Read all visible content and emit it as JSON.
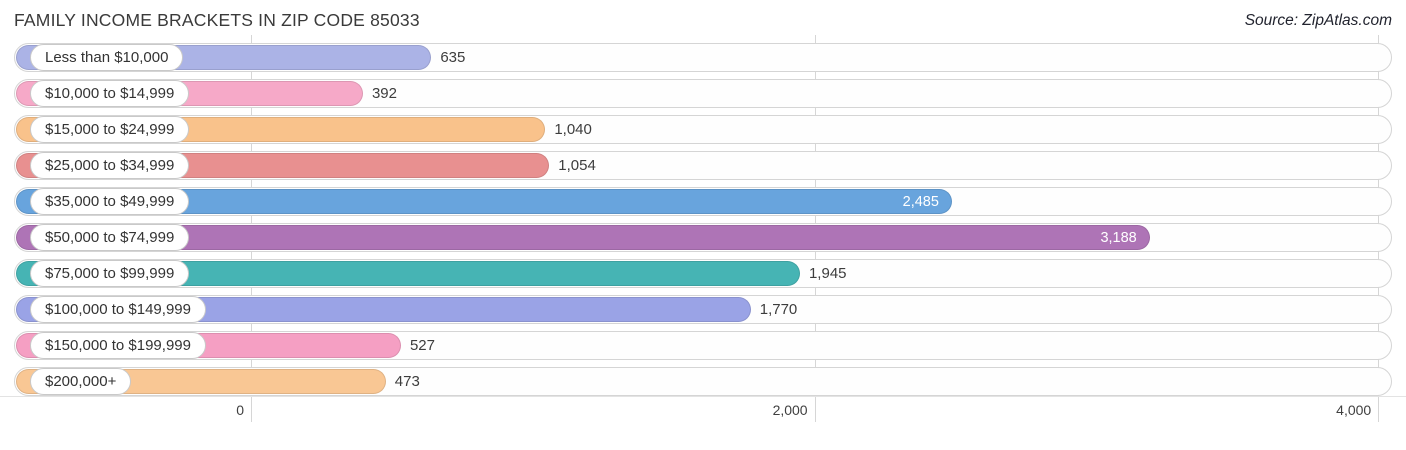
{
  "header": {
    "title": "FAMILY INCOME BRACKETS IN ZIP CODE 85033",
    "source": "Source: ZipAtlas.com"
  },
  "chart_data": {
    "type": "bar",
    "orientation": "horizontal",
    "title": "FAMILY INCOME BRACKETS IN ZIP CODE 85033",
    "source": "Source: ZipAtlas.com",
    "categories": [
      "Less than $10,000",
      "$10,000 to $14,999",
      "$15,000 to $24,999",
      "$25,000 to $34,999",
      "$35,000 to $49,999",
      "$50,000 to $74,999",
      "$75,000 to $99,999",
      "$100,000 to $149,999",
      "$150,000 to $199,999",
      "$200,000+"
    ],
    "values": [
      635,
      392,
      1040,
      1054,
      2485,
      3188,
      1945,
      1770,
      527,
      473
    ],
    "value_labels": [
      "635",
      "392",
      "1,040",
      "1,054",
      "2,485",
      "3,188",
      "1,945",
      "1,770",
      "527",
      "473"
    ],
    "value_label_inside": [
      false,
      false,
      false,
      false,
      true,
      true,
      false,
      false,
      false,
      false
    ],
    "bar_colors": [
      "#abb3e6",
      "#f6a9c8",
      "#f9c28b",
      "#e89090",
      "#68a4dd",
      "#ae74b6",
      "#46b4b4",
      "#9aa3e6",
      "#f59fc3",
      "#f9c794"
    ],
    "xlabel": "",
    "ylabel": "",
    "x_axis": {
      "ticks": [
        {
          "label": "0",
          "value": 0
        },
        {
          "label": "2,000",
          "value": 2000
        },
        {
          "label": "4,000",
          "value": 4000
        }
      ],
      "max": 4000,
      "gridlines": true
    },
    "colors": {
      "grid": "#d6d6d6",
      "track_border": "#d5d5d5",
      "value_text": "#3d3d3d",
      "inside_value_text": "#ffffff"
    }
  }
}
